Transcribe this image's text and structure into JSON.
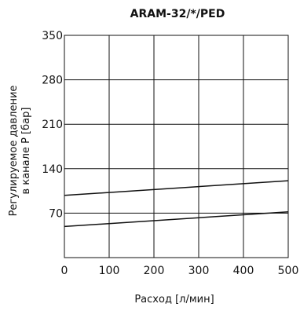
{
  "chart_data": {
    "type": "line",
    "title": "ARAM-32/*/PED",
    "xlabel": "Расход [л/мин]",
    "ylabel_lines": [
      "Регулируемое давление",
      "в канале P [бар]"
    ],
    "xlim": [
      0,
      500
    ],
    "ylim": [
      0,
      350
    ],
    "x_ticks": [
      0,
      100,
      200,
      300,
      400,
      500
    ],
    "y_ticks": [
      70,
      140,
      210,
      280,
      350
    ],
    "grid": true,
    "series": [
      {
        "x": [
          0,
          500
        ],
        "y": [
          98,
          121
        ],
        "color": "#111111"
      },
      {
        "x": [
          0,
          500
        ],
        "y": [
          49,
          72
        ],
        "color": "#111111"
      }
    ]
  }
}
